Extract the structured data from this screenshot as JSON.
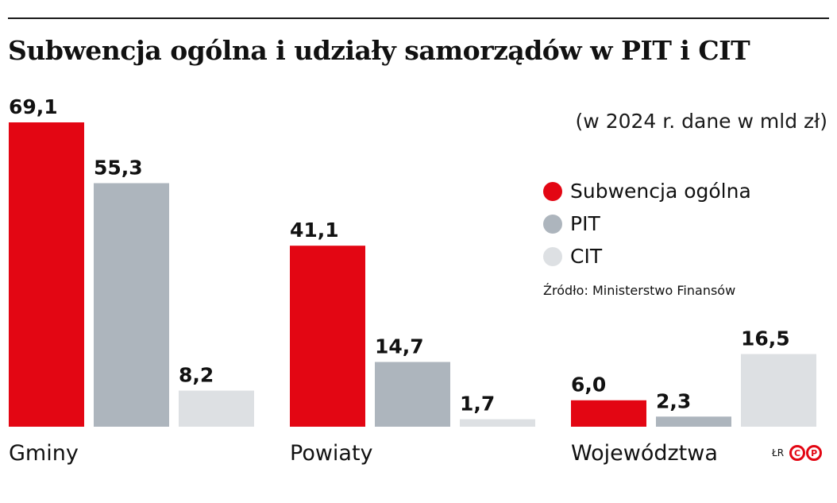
{
  "title": "Subwencja ogólna i udziały samorządów w PIT i CIT",
  "subtitle": "(w 2024 r. dane w mld zł)",
  "source": "Źródło: Ministerstwo Finansów",
  "credit": {
    "initials": "ŁR",
    "logo_letters": [
      "C",
      "P"
    ]
  },
  "colors": {
    "subwencja": "#e30613",
    "pit": "#adb5bd",
    "cit": "#dde0e3",
    "accent": "#e30613"
  },
  "chart_data": {
    "type": "bar",
    "title": "Subwencja ogólna i udziały samorządów w PIT i CIT",
    "subtitle": "(w 2024 r. dane w mld zł)",
    "categories": [
      "Gminy",
      "Powiaty",
      "Województwa"
    ],
    "series": [
      {
        "name": "Subwencja ogólna",
        "color": "#e30613",
        "values": [
          69.1,
          41.1,
          6.0
        ],
        "labels": [
          "69,1",
          "41,1",
          "6,0"
        ]
      },
      {
        "name": "PIT",
        "color": "#adb5bd",
        "values": [
          55.3,
          14.7,
          2.3
        ],
        "labels": [
          "55,3",
          "14,7",
          "2,3"
        ]
      },
      {
        "name": "CIT",
        "color": "#dde0e3",
        "values": [
          8.2,
          1.7,
          16.5
        ],
        "labels": [
          "8,2",
          "1,7",
          "16,5"
        ]
      }
    ],
    "xlabel": "",
    "ylabel": "",
    "ylim": [
      0,
      69.1
    ],
    "grid": false,
    "legend": "right"
  }
}
